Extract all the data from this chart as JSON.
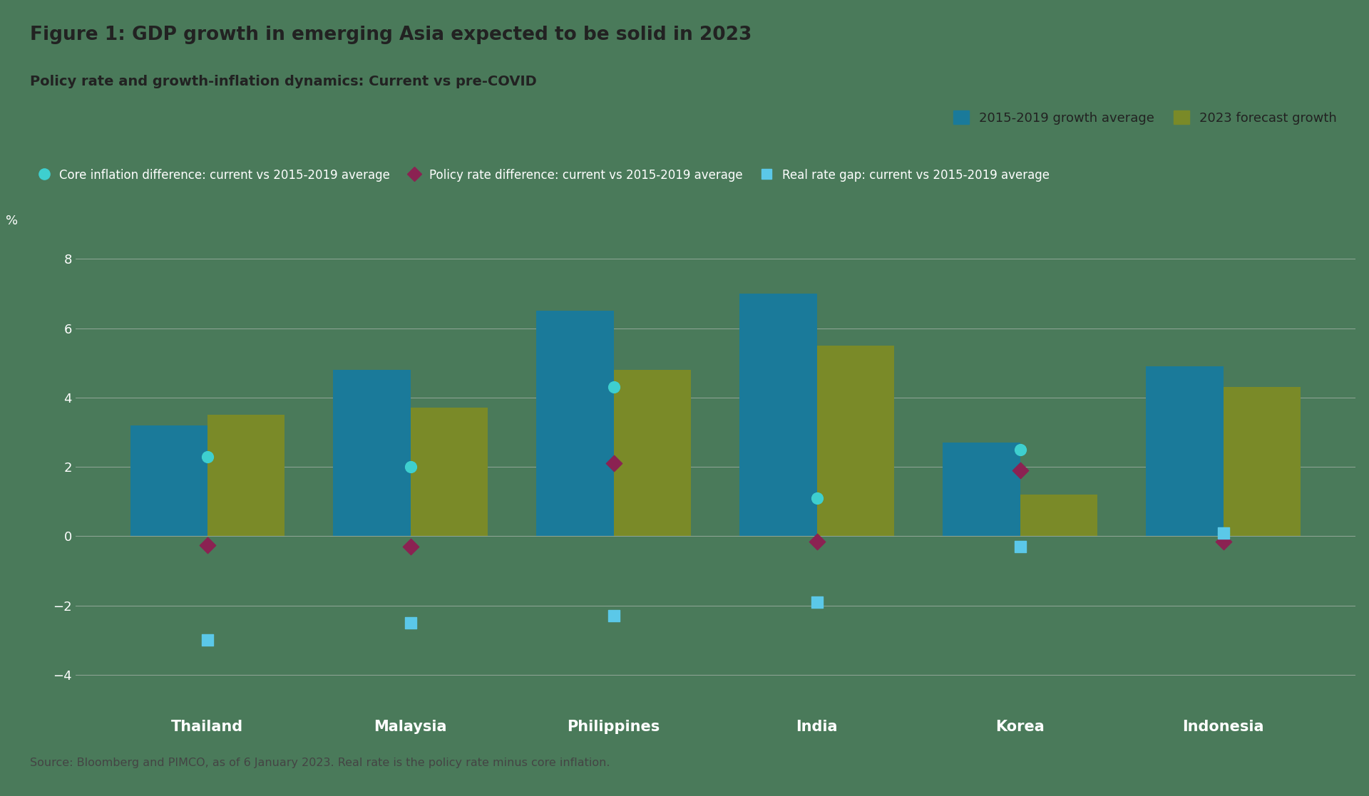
{
  "countries": [
    "Thailand",
    "Malaysia",
    "Philippines",
    "India",
    "Korea",
    "Indonesia"
  ],
  "growth_avg_2015_2019": [
    3.2,
    4.8,
    6.5,
    7.0,
    2.7,
    4.9
  ],
  "forecast_2023": [
    3.5,
    3.7,
    4.8,
    5.5,
    1.2,
    4.3
  ],
  "core_inflation_diff": [
    2.3,
    2.0,
    4.3,
    1.1,
    2.5,
    0.1
  ],
  "policy_rate_diff": [
    -0.25,
    -0.3,
    2.1,
    -0.15,
    1.9,
    -0.15
  ],
  "real_rate_gap": [
    -3.0,
    -2.5,
    -2.3,
    -1.9,
    -0.3,
    0.1
  ],
  "bar_color_blue": "#1a7a9a",
  "bar_color_olive": "#7a8a28",
  "dot_color_cyan": "#3ecfcf",
  "dot_color_pink": "#8b2252",
  "dot_color_lightblue": "#5bc8e8",
  "background_color": "#4a7a5a",
  "title_bg": "#f0f0f0",
  "text_dark": "#222222",
  "text_white": "#ffffff",
  "grid_color": "#cccccc",
  "title": "Figure 1: GDP growth in emerging Asia expected to be solid in 2023",
  "subtitle": "Policy rate and growth-inflation dynamics: Current vs pre-COVID",
  "legend1_label": "2015-2019 growth average",
  "legend2_label": "2023 forecast growth",
  "legend3_label": "Core inflation difference: current vs 2015-2019 average",
  "legend4_label": "Policy rate difference: current vs 2015-2019 average",
  "legend5_label": "Real rate gap: current vs 2015-2019 average",
  "source": "Source: Bloomberg and PIMCO, as of 6 January 2023. Real rate is the policy rate minus core inflation.",
  "ylim": [
    -5.2,
    9.5
  ],
  "yticks": [
    -4,
    -2,
    0,
    2,
    4,
    6,
    8
  ],
  "ylabel": "%"
}
